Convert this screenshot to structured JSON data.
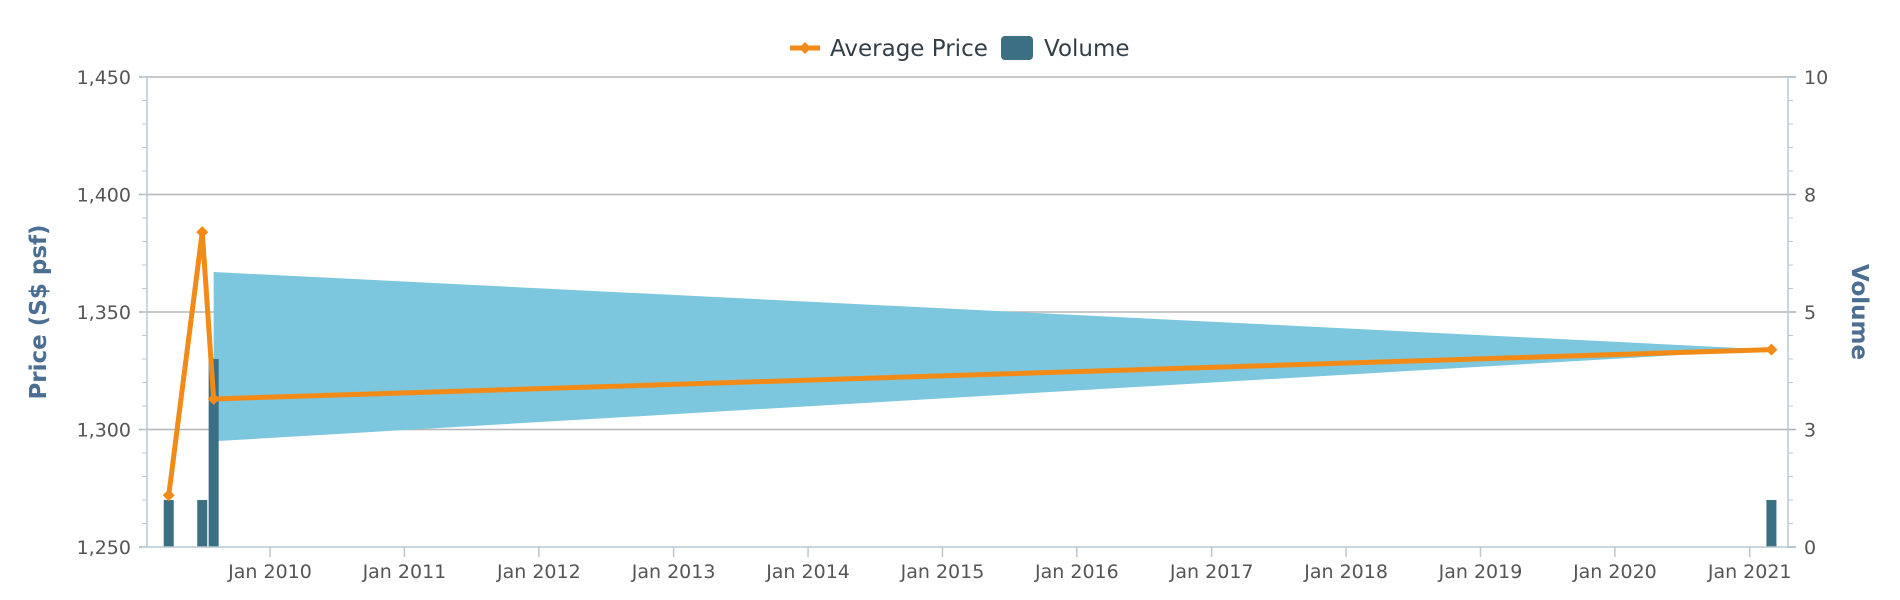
{
  "colors": {
    "price_line": "#f28a17",
    "volume_bar": "#3b6f84",
    "range_area": "#7cc7de",
    "grid": "#b5b5b5",
    "axis_title": "#4a6f93",
    "tick_text": "#555555"
  },
  "chart_data": {
    "type": "line",
    "legend": {
      "placement": "top-center",
      "entries": [
        {
          "label": "Average Price",
          "marker": "line-diamond"
        },
        {
          "label": "Volume",
          "marker": "square"
        }
      ]
    },
    "y_left": {
      "label": "Price (S$ psf)",
      "ylim": [
        1250,
        1450
      ],
      "ticks": [
        1250,
        1300,
        1350,
        1400,
        1450
      ],
      "tick_labels": [
        "1,250",
        "1,300",
        "1,350",
        "1,400",
        "1,450"
      ]
    },
    "y_right": {
      "label": "Volume",
      "ylim": [
        0,
        10
      ],
      "ticks": [
        0,
        2.5,
        5,
        7.5,
        10
      ],
      "tick_labels": [
        "0",
        "3",
        "5",
        "8",
        "10"
      ]
    },
    "x_axis": {
      "type": "date",
      "range": [
        "2009-02-01",
        "2021-04-15"
      ],
      "ticks": [
        "2010-01-01",
        "2011-01-01",
        "2012-01-01",
        "2013-01-01",
        "2014-01-01",
        "2015-01-01",
        "2016-01-01",
        "2017-01-01",
        "2018-01-01",
        "2019-01-01",
        "2020-01-01",
        "2021-01-01"
      ],
      "tick_labels": [
        "Jan 2010",
        "Jan 2011",
        "Jan 2012",
        "Jan 2013",
        "Jan 2014",
        "Jan 2015",
        "Jan 2016",
        "Jan 2017",
        "Jan 2018",
        "Jan 2019",
        "Jan 2020",
        "Jan 2021"
      ]
    },
    "grid": true,
    "series": [
      {
        "name": "Average Price",
        "type": "line",
        "axis": "left",
        "x": [
          "2009-04-01",
          "2009-07-01",
          "2009-08-01",
          "2021-03-01"
        ],
        "y": [
          1272,
          1384,
          1313,
          1334
        ]
      },
      {
        "name": "Volume",
        "type": "bar",
        "axis": "right",
        "x": [
          "2009-04-01",
          "2009-07-01",
          "2009-08-01",
          "2021-03-01"
        ],
        "y": [
          1,
          1,
          4,
          1
        ]
      },
      {
        "type": "area-range",
        "axis": "left",
        "x": [
          "2009-08-01",
          "2021-03-01"
        ],
        "low": [
          1295,
          1334
        ],
        "high": [
          1367,
          1334
        ]
      }
    ]
  }
}
